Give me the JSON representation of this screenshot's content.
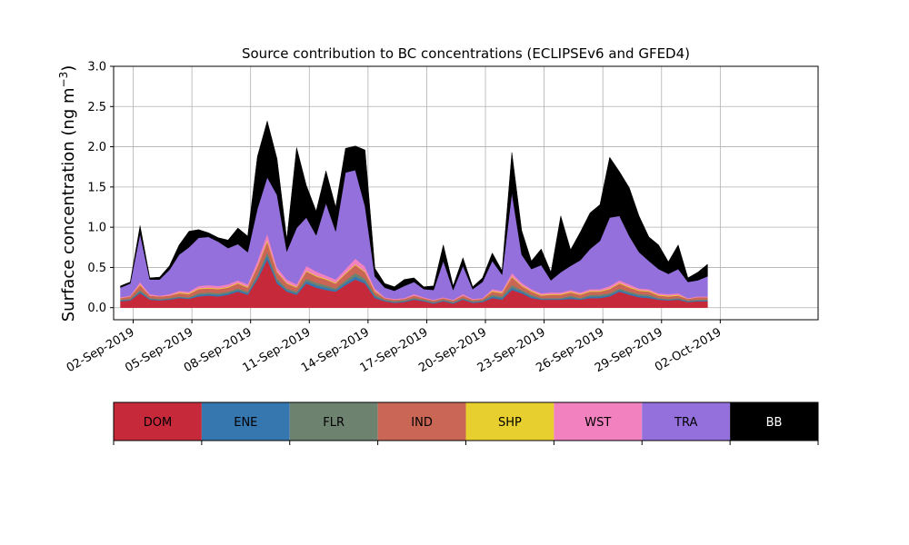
{
  "chart_data": {
    "type": "area",
    "stacked": true,
    "title": "Source contribution to BC concentrations (ECLIPSEv6 and GFED4)",
    "xlabel": "",
    "ylabel": "Surface concentration (ng m",
    "ylabel_sup": "−3",
    "ylabel_close": ")",
    "ylim": [
      -0.15,
      3.0
    ],
    "yticks": [
      0.0,
      0.5,
      1.0,
      1.5,
      2.0,
      2.5,
      3.0
    ],
    "ytick_labels": [
      "0.0",
      "0.5",
      "1.0",
      "1.5",
      "2.0",
      "2.5",
      "3.0"
    ],
    "xlim_days": [
      0,
      36
    ],
    "xticks_days": [
      1,
      4,
      7,
      10,
      13,
      16,
      19,
      22,
      25,
      28,
      31
    ],
    "xtick_labels": [
      "02-Sep-2019",
      "05-Sep-2019",
      "08-Sep-2019",
      "11-Sep-2019",
      "14-Sep-2019",
      "17-Sep-2019",
      "20-Sep-2019",
      "23-Sep-2019",
      "26-Sep-2019",
      "29-Sep-2019",
      "02-Oct-2019"
    ],
    "grid": true,
    "x_days": [
      0.0,
      0.5,
      1.0,
      1.5,
      2.0,
      2.5,
      3.0,
      3.5,
      4.0,
      4.5,
      5.0,
      5.5,
      6.0,
      6.5,
      7.0,
      7.5,
      8.0,
      8.5,
      9.0,
      9.5,
      10.0,
      10.5,
      11.0,
      11.5,
      12.0,
      12.5,
      13.0,
      13.5,
      14.0,
      14.5,
      15.0,
      15.5,
      16.0,
      16.5,
      17.0,
      17.5,
      18.0,
      18.5,
      19.0,
      19.5,
      20.0,
      20.5,
      21.0,
      21.5,
      22.0,
      22.5,
      23.0,
      23.5,
      24.0,
      24.5,
      25.0,
      25.5,
      26.0,
      26.5,
      27.0,
      27.5,
      28.0,
      28.5,
      29.0,
      29.5,
      30.0
    ],
    "x_origin_label": "01-Sep-2019 12:00",
    "series": [
      {
        "name": "DOM",
        "color": "#c62a3a",
        "values": [
          0.08,
          0.09,
          0.18,
          0.1,
          0.09,
          0.1,
          0.12,
          0.11,
          0.14,
          0.15,
          0.14,
          0.16,
          0.2,
          0.16,
          0.35,
          0.6,
          0.3,
          0.2,
          0.16,
          0.3,
          0.25,
          0.22,
          0.2,
          0.28,
          0.35,
          0.3,
          0.12,
          0.08,
          0.06,
          0.07,
          0.1,
          0.08,
          0.05,
          0.08,
          0.05,
          0.1,
          0.06,
          0.07,
          0.12,
          0.1,
          0.22,
          0.18,
          0.12,
          0.1,
          0.1,
          0.1,
          0.11,
          0.1,
          0.12,
          0.12,
          0.14,
          0.2,
          0.16,
          0.13,
          0.12,
          0.1,
          0.09,
          0.1,
          0.07,
          0.08,
          0.08
        ]
      },
      {
        "name": "ENE",
        "color": "#3777b0",
        "values": [
          0.01,
          0.01,
          0.02,
          0.01,
          0.01,
          0.01,
          0.01,
          0.01,
          0.02,
          0.02,
          0.02,
          0.02,
          0.02,
          0.02,
          0.03,
          0.05,
          0.03,
          0.02,
          0.02,
          0.03,
          0.03,
          0.03,
          0.02,
          0.03,
          0.04,
          0.03,
          0.02,
          0.01,
          0.01,
          0.01,
          0.01,
          0.01,
          0.01,
          0.01,
          0.01,
          0.01,
          0.01,
          0.01,
          0.02,
          0.02,
          0.03,
          0.02,
          0.02,
          0.01,
          0.01,
          0.01,
          0.02,
          0.01,
          0.02,
          0.02,
          0.02,
          0.02,
          0.02,
          0.02,
          0.02,
          0.01,
          0.01,
          0.01,
          0.01,
          0.01,
          0.01
        ]
      },
      {
        "name": "FLR",
        "color": "#6e8270",
        "values": [
          0.01,
          0.01,
          0.02,
          0.01,
          0.01,
          0.01,
          0.01,
          0.01,
          0.02,
          0.02,
          0.02,
          0.02,
          0.02,
          0.02,
          0.03,
          0.04,
          0.03,
          0.02,
          0.02,
          0.03,
          0.03,
          0.03,
          0.02,
          0.03,
          0.04,
          0.03,
          0.02,
          0.01,
          0.01,
          0.01,
          0.01,
          0.01,
          0.01,
          0.01,
          0.01,
          0.01,
          0.01,
          0.01,
          0.02,
          0.02,
          0.03,
          0.02,
          0.02,
          0.01,
          0.01,
          0.01,
          0.02,
          0.01,
          0.02,
          0.02,
          0.02,
          0.02,
          0.02,
          0.02,
          0.02,
          0.01,
          0.01,
          0.01,
          0.01,
          0.01,
          0.01
        ]
      },
      {
        "name": "IND",
        "color": "#c96655",
        "values": [
          0.02,
          0.03,
          0.06,
          0.03,
          0.03,
          0.03,
          0.04,
          0.04,
          0.05,
          0.05,
          0.05,
          0.05,
          0.06,
          0.05,
          0.1,
          0.13,
          0.08,
          0.06,
          0.05,
          0.09,
          0.08,
          0.07,
          0.06,
          0.08,
          0.1,
          0.08,
          0.04,
          0.02,
          0.02,
          0.02,
          0.03,
          0.02,
          0.02,
          0.02,
          0.02,
          0.03,
          0.02,
          0.02,
          0.04,
          0.04,
          0.1,
          0.05,
          0.04,
          0.03,
          0.04,
          0.04,
          0.04,
          0.04,
          0.04,
          0.04,
          0.05,
          0.06,
          0.05,
          0.04,
          0.04,
          0.03,
          0.03,
          0.03,
          0.02,
          0.03,
          0.03
        ]
      },
      {
        "name": "SHP",
        "color": "#e6cf2f",
        "values": [
          0.0,
          0.0,
          0.01,
          0.0,
          0.0,
          0.0,
          0.01,
          0.01,
          0.01,
          0.01,
          0.01,
          0.01,
          0.01,
          0.01,
          0.01,
          0.02,
          0.01,
          0.01,
          0.01,
          0.01,
          0.01,
          0.01,
          0.01,
          0.01,
          0.01,
          0.01,
          0.01,
          0.0,
          0.0,
          0.0,
          0.0,
          0.0,
          0.0,
          0.0,
          0.0,
          0.0,
          0.0,
          0.0,
          0.01,
          0.01,
          0.01,
          0.01,
          0.01,
          0.01,
          0.01,
          0.01,
          0.01,
          0.01,
          0.01,
          0.01,
          0.01,
          0.01,
          0.01,
          0.01,
          0.01,
          0.01,
          0.01,
          0.01,
          0.0,
          0.0,
          0.0
        ]
      },
      {
        "name": "WST",
        "color": "#f181bf",
        "values": [
          0.01,
          0.01,
          0.03,
          0.02,
          0.01,
          0.02,
          0.02,
          0.02,
          0.03,
          0.03,
          0.03,
          0.03,
          0.03,
          0.03,
          0.06,
          0.08,
          0.05,
          0.04,
          0.03,
          0.06,
          0.05,
          0.04,
          0.04,
          0.05,
          0.07,
          0.06,
          0.03,
          0.01,
          0.01,
          0.01,
          0.02,
          0.01,
          0.01,
          0.01,
          0.01,
          0.02,
          0.01,
          0.01,
          0.02,
          0.02,
          0.04,
          0.03,
          0.02,
          0.02,
          0.02,
          0.02,
          0.02,
          0.02,
          0.02,
          0.02,
          0.03,
          0.03,
          0.03,
          0.02,
          0.02,
          0.02,
          0.02,
          0.02,
          0.01,
          0.01,
          0.01
        ]
      },
      {
        "name": "TRA",
        "color": "#9370db",
        "values": [
          0.12,
          0.15,
          0.6,
          0.18,
          0.2,
          0.3,
          0.45,
          0.55,
          0.6,
          0.6,
          0.55,
          0.45,
          0.45,
          0.4,
          0.65,
          0.7,
          0.9,
          0.35,
          0.7,
          0.6,
          0.45,
          0.9,
          0.6,
          1.2,
          1.1,
          0.75,
          0.15,
          0.12,
          0.1,
          0.15,
          0.15,
          0.1,
          0.12,
          0.45,
          0.12,
          0.35,
          0.12,
          0.2,
          0.35,
          0.2,
          1.0,
          0.35,
          0.25,
          0.35,
          0.15,
          0.25,
          0.3,
          0.4,
          0.5,
          0.6,
          0.85,
          0.8,
          0.6,
          0.45,
          0.35,
          0.3,
          0.25,
          0.3,
          0.2,
          0.2,
          0.25
        ]
      },
      {
        "name": "BB",
        "color": "#000000",
        "values": [
          0.02,
          0.02,
          0.1,
          0.02,
          0.03,
          0.05,
          0.12,
          0.2,
          0.1,
          0.05,
          0.05,
          0.1,
          0.2,
          0.2,
          0.65,
          0.7,
          0.45,
          0.15,
          1.0,
          0.4,
          0.3,
          0.4,
          0.3,
          0.3,
          0.3,
          0.7,
          0.1,
          0.05,
          0.05,
          0.08,
          0.05,
          0.03,
          0.05,
          0.2,
          0.05,
          0.1,
          0.03,
          0.05,
          0.1,
          0.05,
          0.5,
          0.3,
          0.1,
          0.2,
          0.1,
          0.7,
          0.2,
          0.35,
          0.45,
          0.45,
          0.75,
          0.55,
          0.6,
          0.45,
          0.3,
          0.3,
          0.15,
          0.3,
          0.05,
          0.1,
          0.15
        ]
      }
    ]
  },
  "legend": {
    "items": [
      {
        "label": "DOM",
        "color": "#c62a3a",
        "text_color": "#000000"
      },
      {
        "label": "ENE",
        "color": "#3777b0",
        "text_color": "#000000"
      },
      {
        "label": "FLR",
        "color": "#6e8270",
        "text_color": "#000000"
      },
      {
        "label": "IND",
        "color": "#c96655",
        "text_color": "#000000"
      },
      {
        "label": "SHP",
        "color": "#e6cf2f",
        "text_color": "#000000"
      },
      {
        "label": "WST",
        "color": "#f181bf",
        "text_color": "#000000"
      },
      {
        "label": "TRA",
        "color": "#9370db",
        "text_color": "#000000"
      },
      {
        "label": "BB",
        "color": "#000000",
        "text_color": "#ffffff"
      }
    ]
  }
}
